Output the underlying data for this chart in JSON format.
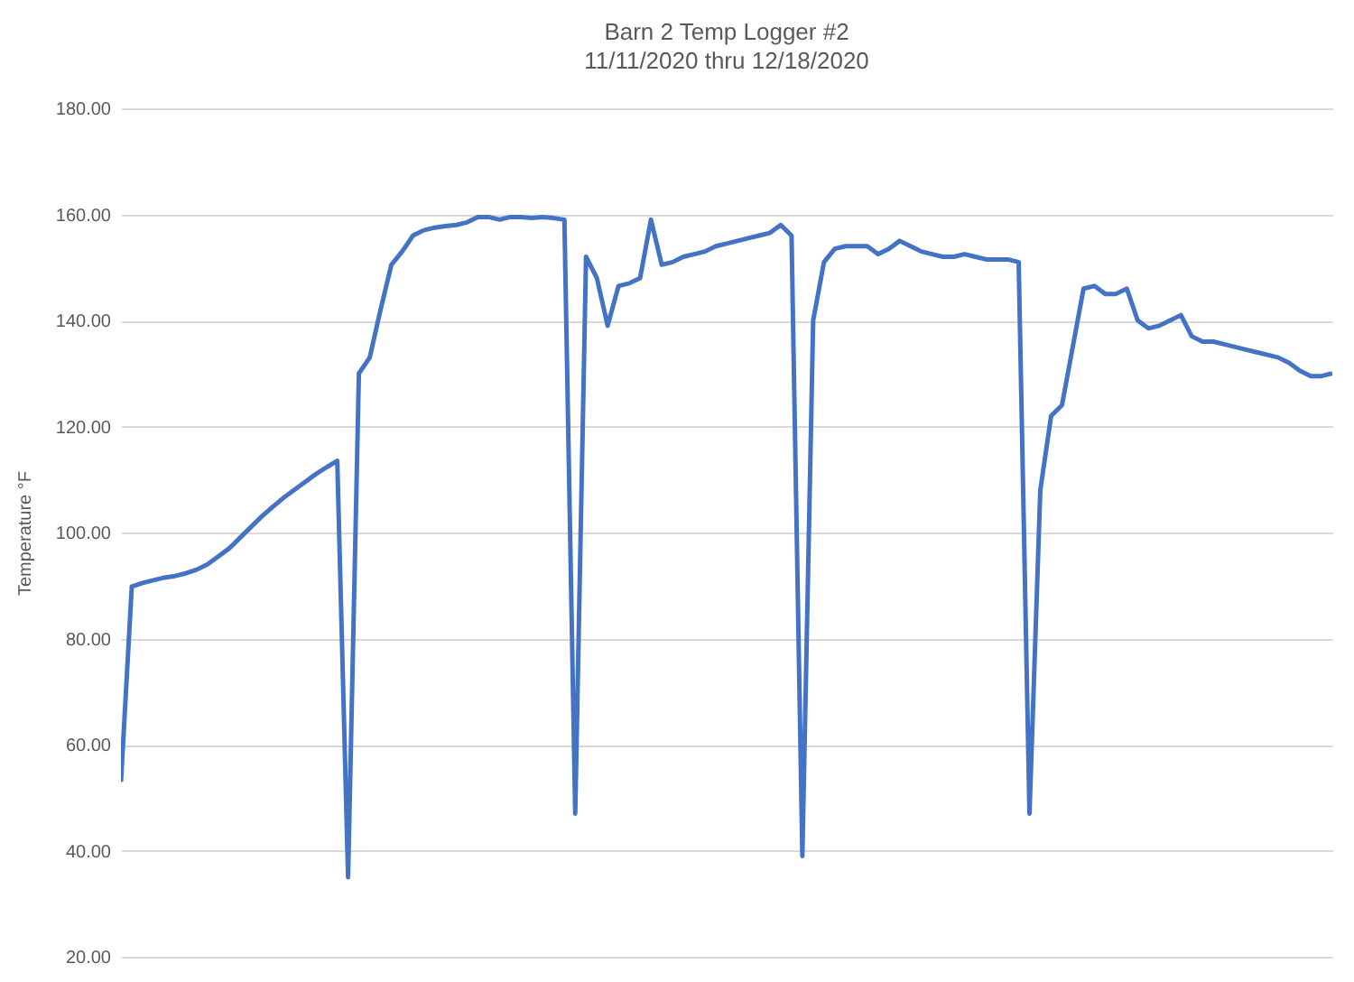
{
  "chart_data": {
    "type": "line",
    "title": "Barn 2 Temp Logger #2",
    "subtitle": "11/11/2020 thru 12/18/2020",
    "ylabel": "Temperature °F",
    "categories": [
      null,
      null,
      null,
      null,
      null,
      null,
      null,
      null,
      null,
      null,
      null,
      null,
      null,
      null,
      null,
      null,
      null,
      null,
      null,
      null,
      null,
      null,
      null,
      null,
      null,
      null,
      null,
      null,
      null,
      null,
      null,
      null,
      null,
      null,
      null,
      null,
      null,
      null,
      null,
      null,
      null,
      null,
      null,
      null,
      null,
      null,
      null,
      null,
      null,
      null,
      null,
      null,
      null,
      null,
      null,
      null,
      null,
      null,
      null,
      null,
      null,
      null,
      null,
      null,
      null,
      null,
      null,
      null,
      null,
      null,
      null,
      null,
      null,
      null,
      null,
      null,
      null,
      null,
      null,
      null,
      null,
      null,
      null,
      null,
      null,
      null,
      null,
      null,
      null,
      null,
      null,
      null,
      null,
      null,
      null,
      null,
      null,
      null,
      null,
      null,
      null,
      null,
      null,
      null,
      null,
      null,
      null,
      null,
      null,
      null,
      null,
      null,
      null
    ],
    "series": [
      {
        "color": "#4472c4",
        "values": [
          53,
          89.8,
          90.5,
          91,
          91.5,
          91.8,
          92.3,
          93,
          94,
          95.5,
          97,
          99,
          101,
          103,
          104.8,
          106.5,
          108,
          109.5,
          111,
          112.3,
          113.5,
          35,
          130,
          133,
          142,
          150.5,
          153,
          156,
          157,
          157.5,
          157.8,
          158,
          158.5,
          159.5,
          159.5,
          159,
          159.5,
          159.5,
          159.3,
          159.5,
          159.3,
          159,
          47,
          152,
          148,
          139,
          146.5,
          147,
          148,
          159,
          150.5,
          151,
          152,
          152.5,
          153,
          154,
          154.5,
          155,
          155.5,
          156,
          156.5,
          158,
          156,
          39,
          140,
          151,
          153.5,
          154,
          154,
          154,
          152.5,
          153.5,
          155,
          154,
          153,
          152.5,
          152,
          152,
          152.5,
          152,
          151.5,
          151.5,
          151.5,
          151,
          47,
          108,
          122,
          124,
          135,
          146,
          146.5,
          145,
          145,
          146,
          140,
          138.5,
          139,
          140,
          141,
          137,
          136,
          136,
          135.5,
          135,
          134.5,
          134,
          133.5,
          133,
          132,
          130.5,
          129.5,
          129.5,
          130
        ]
      }
    ],
    "ylim": [
      20,
      180
    ],
    "yticks": [
      {
        "value": 20,
        "label": "20.00"
      },
      {
        "value": 40,
        "label": "40.00"
      },
      {
        "value": 60,
        "label": "60.00"
      },
      {
        "value": 80,
        "label": "80.00"
      },
      {
        "value": 100,
        "label": "100.00"
      },
      {
        "value": 120,
        "label": "120.00"
      },
      {
        "value": 140,
        "label": "140.00"
      },
      {
        "value": 160,
        "label": "160.00"
      },
      {
        "value": 180,
        "label": "180.00"
      }
    ],
    "grid": "y",
    "tick_labels": "y"
  }
}
